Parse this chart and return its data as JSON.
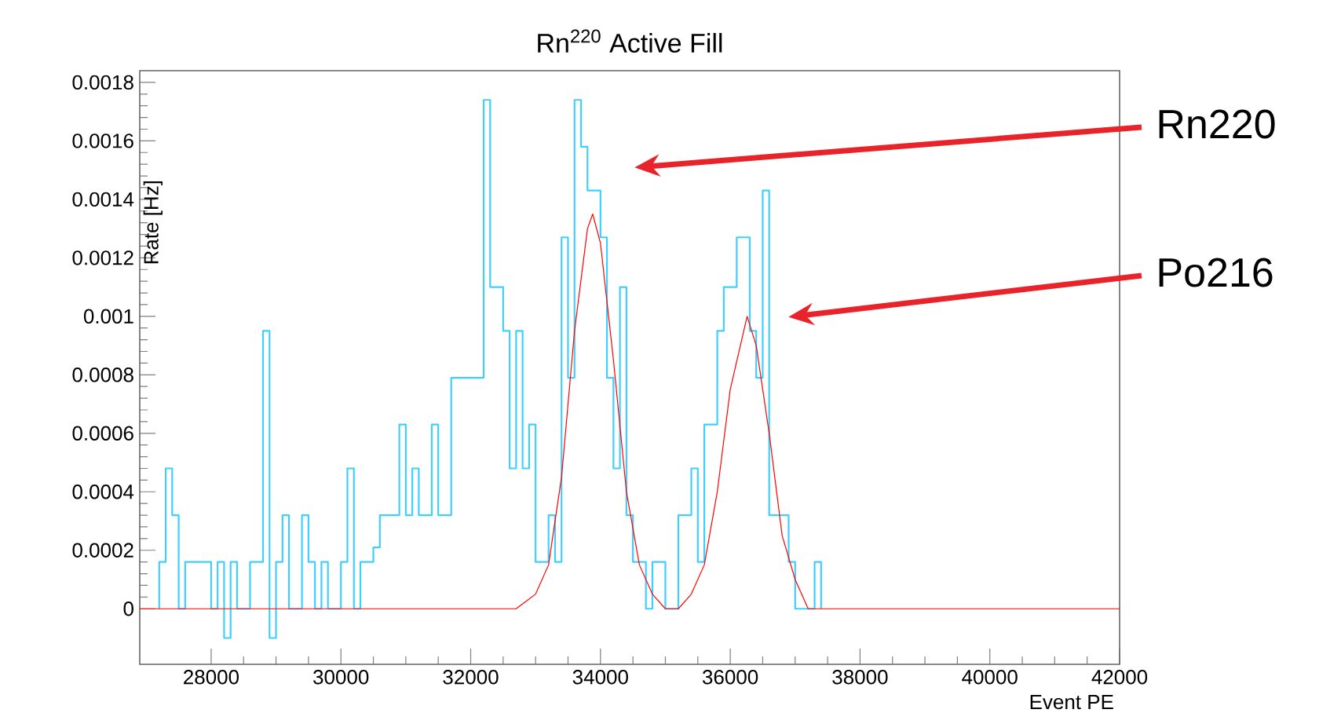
{
  "chart_data": {
    "type": "histogram",
    "title": "Rn$^{220}$ Active Fill",
    "xlabel": "Event PE",
    "ylabel": "Rate [Hz]",
    "xlim": [
      26900,
      42000
    ],
    "ylim": [
      -0.00019,
      0.00184
    ],
    "xticks": [
      28000,
      30000,
      32000,
      34000,
      36000,
      38000,
      40000,
      42000
    ],
    "yticks": [
      0,
      0.0002,
      0.0004,
      0.0006,
      0.0008,
      0.001,
      0.0012,
      0.0014,
      0.0016,
      0.0018
    ],
    "grid": false,
    "series": [
      {
        "type": "histogram",
        "color": "#3fcfff",
        "bins": [
          27200,
          27300,
          27400,
          27500,
          27600,
          27700,
          27800,
          27900,
          28000,
          28100,
          28200,
          28300,
          28400,
          28500,
          28600,
          28700,
          28800,
          28900,
          29000,
          29100,
          29200,
          29300,
          29400,
          29500,
          29600,
          29700,
          29800,
          29900,
          30000,
          30100,
          30200,
          30300,
          30400,
          30500,
          30600,
          30700,
          30800,
          30900,
          31000,
          31100,
          31200,
          31300,
          31400,
          31500,
          31600,
          31700,
          31800,
          31900,
          32000,
          32100,
          32200,
          32300,
          32400,
          32500,
          32600,
          32700,
          32800,
          32900,
          33000,
          33100,
          33200,
          33300,
          33400,
          33500,
          33600,
          33700,
          33800,
          33900,
          34000,
          34100,
          34200,
          34300,
          34400,
          34500,
          34600,
          34700,
          34800,
          34900,
          35000,
          35100,
          35200,
          35300,
          35400,
          35500,
          35600,
          35700,
          35800,
          35900,
          36000,
          36100,
          36200,
          36300,
          36400,
          36500,
          36600,
          36700,
          36800,
          36900,
          37000,
          37100,
          37200,
          37300,
          37400
        ],
        "values": [
          0.00016,
          0.00048,
          0.00032,
          0,
          0.00016,
          0.00016,
          0.00016,
          0.00016,
          0,
          0.00016,
          -0.0001,
          0.00016,
          0,
          0,
          0.00016,
          0.00016,
          0.00095,
          -0.0001,
          0.00016,
          0.00032,
          0,
          0,
          0.00032,
          0.00016,
          0,
          0.00016,
          0,
          0,
          0.00016,
          0.00048,
          0,
          0.00016,
          0.00016,
          0.00021,
          0.00032,
          0.00032,
          0.00032,
          0.00063,
          0.00032,
          0.00048,
          0.00032,
          0.00032,
          0.00063,
          0.00032,
          0.00032,
          0.00079,
          0.00079,
          0.00079,
          0.00079,
          0.00079,
          0.00174,
          0.0011,
          0.0011,
          0.00095,
          0.00048,
          0.00095,
          0.00048,
          0.00063,
          0.00016,
          0.00016,
          0.00032,
          0.00016,
          0.00127,
          0.00079,
          0.00174,
          0.00158,
          0.00143,
          0.00143,
          0.00127,
          0.00079,
          0.00048,
          0.0011,
          0.00032,
          0.00016,
          0.00016,
          0,
          0.00016,
          0.00016,
          0,
          0,
          0.00032,
          0.00032,
          0.00048,
          0.00016,
          0.00063,
          0.00063,
          0.00095,
          0.0011,
          0.0011,
          0.00127,
          0.00127,
          0.00095,
          0.00079,
          0.00143,
          0.00032,
          0.00032,
          0.00032,
          0.00016,
          0,
          0,
          0,
          0.00016
        ]
      },
      {
        "type": "line",
        "color": "#ff0000",
        "x": [
          26900,
          32700,
          33000,
          33200,
          33400,
          33600,
          33800,
          33880,
          34000,
          34200,
          34400,
          34600,
          34800,
          35000,
          35200,
          35400,
          35600,
          35800,
          36000,
          36260,
          36400,
          36600,
          36800,
          37000,
          37200,
          37500,
          42000
        ],
        "values": [
          0,
          0,
          5e-05,
          0.00015,
          0.00045,
          0.00095,
          0.0013,
          0.00135,
          0.00125,
          0.00085,
          0.0004,
          0.00015,
          5e-05,
          0,
          0,
          5e-05,
          0.00015,
          0.0004,
          0.00075,
          0.001,
          0.0009,
          0.0006,
          0.00025,
          0.0001,
          0,
          0,
          0
        ]
      }
    ],
    "annotations": [
      "Rn220",
      "Po216"
    ]
  }
}
